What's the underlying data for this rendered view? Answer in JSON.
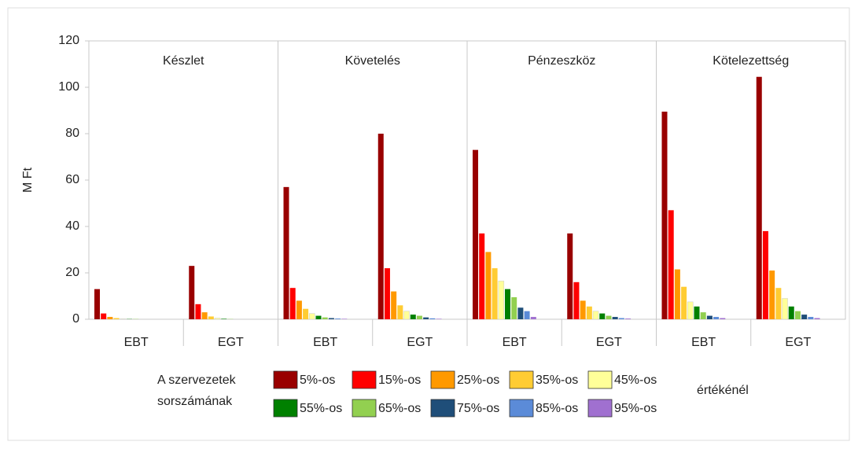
{
  "chart_data": {
    "type": "bar",
    "ylabel": "M Ft",
    "groups": [
      "Készlet",
      "Követelés",
      "Pénzeszköz",
      "Kötelezettség"
    ],
    "categories": [
      "EBT",
      "EGT",
      "EBT",
      "EGT",
      "EBT",
      "EGT",
      "EBT",
      "EGT"
    ],
    "ylim": [
      0,
      120
    ],
    "yticks": [
      0,
      20,
      40,
      60,
      80,
      100,
      120
    ],
    "grid": false,
    "legend_prefix": [
      "A szervezetek",
      "sorszámának"
    ],
    "legend_suffix": "értékénél",
    "series": [
      {
        "name": "5%-os",
        "color": "#990000",
        "values": [
          13,
          23,
          57,
          80,
          73,
          37,
          89.5,
          104.5
        ]
      },
      {
        "name": "15%-os",
        "color": "#ff0000",
        "values": [
          2.5,
          6.5,
          13.5,
          22,
          37,
          16,
          47,
          38
        ]
      },
      {
        "name": "25%-os",
        "color": "#ff9900",
        "values": [
          1,
          3,
          8,
          12,
          29,
          8,
          21.5,
          21
        ]
      },
      {
        "name": "35%-os",
        "color": "#ffcc33",
        "values": [
          0.5,
          1.2,
          4.5,
          6,
          22,
          5.5,
          14,
          13.5
        ]
      },
      {
        "name": "45%-os",
        "color": "#ffff99",
        "values": [
          0.2,
          0.5,
          2.5,
          3.5,
          16.5,
          3.5,
          7.5,
          9
        ]
      },
      {
        "name": "55%-os",
        "color": "#008000",
        "values": [
          0.1,
          0.2,
          1.5,
          2,
          13,
          2.5,
          5.5,
          5.5
        ]
      },
      {
        "name": "65%-os",
        "color": "#92d050",
        "values": [
          0.1,
          0.1,
          0.8,
          1.5,
          9.5,
          1.5,
          3,
          3.5
        ]
      },
      {
        "name": "75%-os",
        "color": "#1f4e79",
        "values": [
          0,
          0,
          0.5,
          0.8,
          5,
          1,
          1.5,
          2
        ]
      },
      {
        "name": "85%-os",
        "color": "#5b8bd8",
        "values": [
          0,
          0,
          0.3,
          0.4,
          3.5,
          0.5,
          1,
          1
        ]
      },
      {
        "name": "95%-os",
        "color": "#a070d0",
        "values": [
          0,
          0,
          0.2,
          0.2,
          1,
          0.3,
          0.5,
          0.5
        ]
      }
    ]
  }
}
